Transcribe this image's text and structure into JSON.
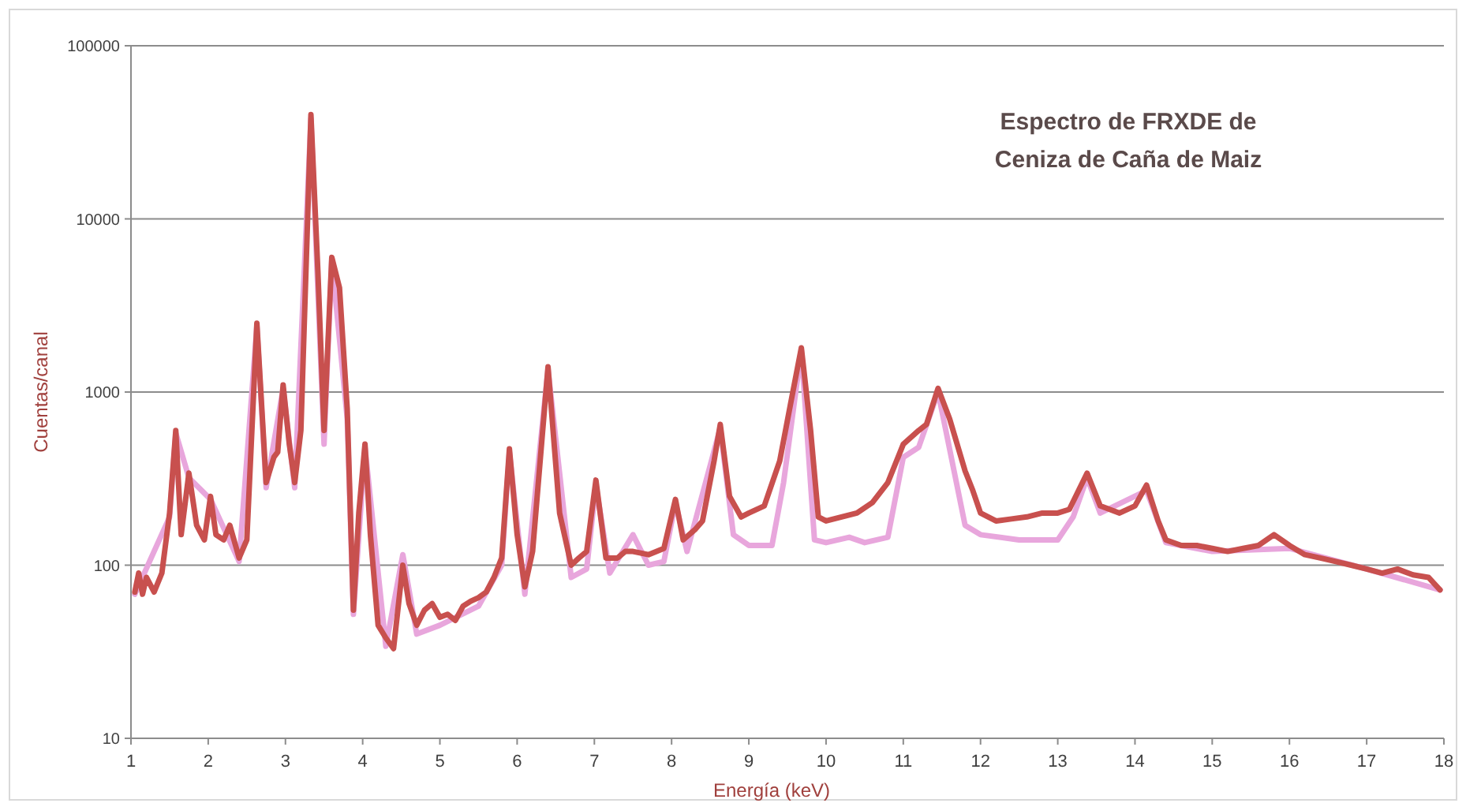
{
  "chart_data": {
    "type": "line",
    "title": "Espectro de FRXDE de\nCeniza de Caña de Maiz",
    "xlabel": "Energía (keV)",
    "ylabel": "Cuentas/canal",
    "log": "y",
    "grid": "y",
    "line_style": "solid",
    "marker": "none",
    "xlim": [
      1,
      18
    ],
    "xticks": [
      1,
      2,
      3,
      4,
      5,
      6,
      7,
      8,
      9,
      10,
      11,
      12,
      13,
      14,
      15,
      16,
      17,
      18
    ],
    "ylim": [
      10,
      100000
    ],
    "yticks": [
      10,
      100,
      1000,
      10000,
      100000
    ],
    "series": [
      {
        "color": "#e8a6dc",
        "x": [
          1.05,
          1.5,
          1.58,
          1.75,
          2.03,
          2.4,
          2.63,
          2.75,
          2.97,
          3.12,
          3.33,
          3.5,
          3.6,
          3.8,
          3.88,
          4.03,
          4.3,
          4.52,
          4.7,
          5.0,
          5.5,
          5.8,
          5.9,
          6.1,
          6.4,
          6.7,
          6.9,
          7.02,
          7.2,
          7.5,
          7.7,
          7.9,
          8.05,
          8.2,
          8.63,
          8.8,
          9.0,
          9.3,
          9.45,
          9.68,
          9.85,
          10.0,
          10.3,
          10.5,
          10.8,
          11.0,
          11.2,
          11.45,
          11.8,
          12.0,
          12.5,
          13.0,
          13.2,
          13.38,
          13.55,
          14.15,
          14.4,
          15.0,
          16.0,
          17.0,
          17.95
        ],
        "values": [
          68,
          190,
          580,
          320,
          240,
          105,
          2400,
          280,
          1050,
          280,
          38000,
          500,
          5800,
          700,
          52,
          480,
          34,
          115,
          40,
          45,
          58,
          100,
          450,
          68,
          1350,
          85,
          95,
          290,
          90,
          150,
          100,
          105,
          230,
          120,
          620,
          150,
          130,
          130,
          300,
          1750,
          140,
          135,
          145,
          135,
          145,
          420,
          480,
          1000,
          170,
          150,
          140,
          140,
          190,
          320,
          200,
          270,
          135,
          120,
          125,
          95,
          72
        ]
      },
      {
        "color": "#c8504e",
        "x": [
          1.05,
          1.1,
          1.15,
          1.2,
          1.3,
          1.4,
          1.5,
          1.58,
          1.65,
          1.75,
          1.85,
          1.95,
          2.03,
          2.1,
          2.2,
          2.28,
          2.4,
          2.5,
          2.63,
          2.75,
          2.85,
          2.9,
          2.97,
          3.05,
          3.12,
          3.2,
          3.33,
          3.42,
          3.5,
          3.6,
          3.7,
          3.8,
          3.88,
          3.95,
          4.03,
          4.1,
          4.2,
          4.3,
          4.4,
          4.52,
          4.6,
          4.7,
          4.8,
          4.9,
          5.0,
          5.1,
          5.2,
          5.3,
          5.4,
          5.5,
          5.6,
          5.7,
          5.8,
          5.9,
          6.0,
          6.1,
          6.2,
          6.4,
          6.55,
          6.7,
          6.8,
          6.9,
          7.02,
          7.15,
          7.3,
          7.4,
          7.5,
          7.7,
          7.9,
          8.05,
          8.15,
          8.3,
          8.4,
          8.55,
          8.63,
          8.75,
          8.9,
          9.0,
          9.2,
          9.4,
          9.55,
          9.68,
          9.8,
          9.9,
          10.0,
          10.2,
          10.4,
          10.6,
          10.8,
          11.0,
          11.2,
          11.3,
          11.45,
          11.6,
          11.8,
          11.9,
          12.0,
          12.2,
          12.4,
          12.6,
          12.8,
          13.0,
          13.15,
          13.38,
          13.55,
          13.8,
          14.0,
          14.15,
          14.3,
          14.4,
          14.6,
          14.8,
          15.0,
          15.2,
          15.4,
          15.6,
          15.8,
          16.0,
          16.2,
          16.4,
          16.6,
          16.8,
          17.0,
          17.2,
          17.4,
          17.6,
          17.8,
          17.95
        ],
        "values": [
          70,
          90,
          68,
          85,
          70,
          90,
          200,
          600,
          150,
          340,
          170,
          140,
          250,
          150,
          140,
          170,
          110,
          140,
          2500,
          300,
          420,
          450,
          1100,
          500,
          300,
          600,
          40000,
          5000,
          600,
          6000,
          4000,
          800,
          55,
          200,
          500,
          150,
          45,
          38,
          33,
          100,
          60,
          45,
          55,
          60,
          50,
          52,
          48,
          58,
          62,
          65,
          70,
          85,
          110,
          470,
          150,
          75,
          120,
          1400,
          200,
          100,
          110,
          120,
          310,
          110,
          110,
          120,
          120,
          115,
          125,
          240,
          140,
          160,
          180,
          400,
          650,
          250,
          190,
          200,
          220,
          400,
          900,
          1800,
          600,
          190,
          180,
          190,
          200,
          230,
          300,
          500,
          600,
          650,
          1050,
          700,
          350,
          270,
          200,
          180,
          185,
          190,
          200,
          200,
          210,
          340,
          220,
          200,
          220,
          290,
          180,
          140,
          130,
          130,
          125,
          120,
          125,
          130,
          150,
          130,
          115,
          110,
          105,
          100,
          95,
          90,
          95,
          88,
          85,
          72
        ]
      }
    ]
  }
}
